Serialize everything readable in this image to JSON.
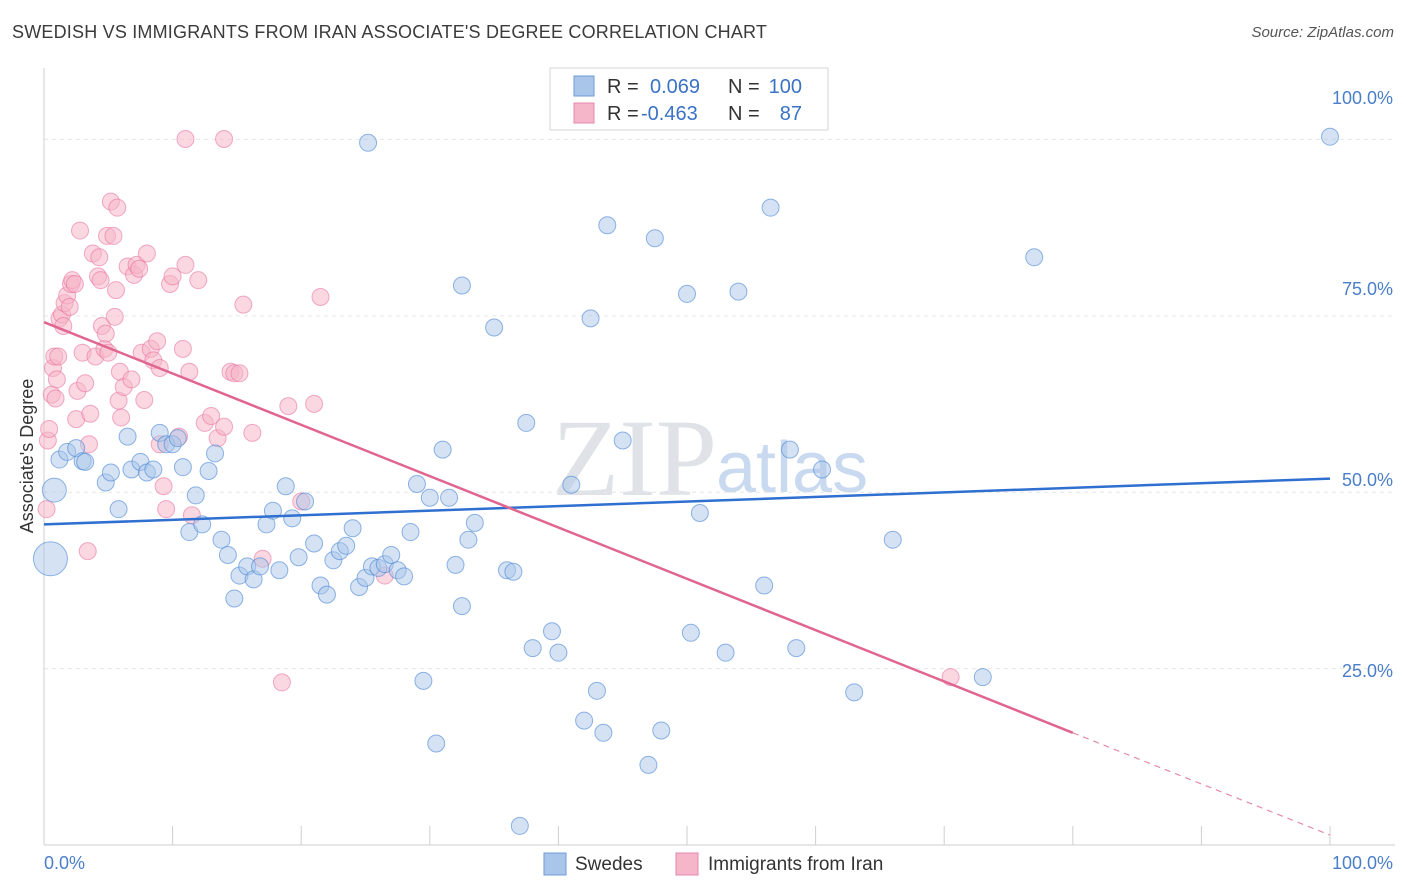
{
  "title": "SWEDISH VS IMMIGRANTS FROM IRAN ASSOCIATE'S DEGREE CORRELATION CHART",
  "source": "Source: ZipAtlas.com",
  "watermark": {
    "zip": "ZIP",
    "atlas": "atlas"
  },
  "legend": {
    "rows": [
      {
        "r_label": "R =",
        "r_value": "0.069",
        "n_label": "N =",
        "n_value": "100",
        "color": "#a9c6ea"
      },
      {
        "r_label": "R =",
        "r_value": "-0.463",
        "n_label": "N =",
        "n_value": "87",
        "color": "#f5b6c9"
      }
    ]
  },
  "bottom_legend": {
    "swedes": "Swedes",
    "iran": "Immigrants from Iran"
  },
  "chart_data": {
    "type": "scatter",
    "ylabel": "Associate's Degree",
    "xlabel": "",
    "x_tick_labels": [
      "0.0%",
      "100.0%"
    ],
    "y_tick_labels": [
      "100.0%",
      "75.0%",
      "50.0%",
      "25.0%"
    ],
    "xlim": [
      0,
      100
    ],
    "ylim": [
      0,
      103
    ],
    "grid": true,
    "colors": {
      "swedes": "#4a86d4",
      "swedes_fill": "#a9c6ea",
      "iran": "#e76b9a",
      "iran_fill": "#f5b6c9"
    },
    "series": [
      {
        "name": "Swedes",
        "trend": {
          "x0": 0,
          "y0": 42.0,
          "x1": 100,
          "y1": 48.0
        },
        "points": [
          [
            0.5,
            37.5
          ],
          [
            0.8,
            46.5
          ],
          [
            1.2,
            50.5
          ],
          [
            1.8,
            51.5
          ],
          [
            2.5,
            52
          ],
          [
            3,
            50.3
          ],
          [
            3.2,
            50.2
          ],
          [
            4.8,
            47.5
          ],
          [
            5.2,
            48.8
          ],
          [
            5.8,
            44
          ],
          [
            6.5,
            53.5
          ],
          [
            6.8,
            49.2
          ],
          [
            7.5,
            50.2
          ],
          [
            8,
            48.8
          ],
          [
            8.5,
            49.2
          ],
          [
            9,
            54
          ],
          [
            9.5,
            52.5
          ],
          [
            10,
            52.5
          ],
          [
            10.4,
            53.3
          ],
          [
            10.8,
            49.5
          ],
          [
            11.3,
            41
          ],
          [
            11.8,
            45.8
          ],
          [
            12.3,
            42
          ],
          [
            12.8,
            49
          ],
          [
            13.3,
            51.3
          ],
          [
            13.8,
            40
          ],
          [
            14.3,
            38
          ],
          [
            14.8,
            32.3
          ],
          [
            15.2,
            35.3
          ],
          [
            15.8,
            36.5
          ],
          [
            16.3,
            34.8
          ],
          [
            16.8,
            36.5
          ],
          [
            17.3,
            42
          ],
          [
            17.8,
            43.8
          ],
          [
            18.3,
            36
          ],
          [
            18.8,
            47
          ],
          [
            19.3,
            42.8
          ],
          [
            19.8,
            37.7
          ],
          [
            20.3,
            45
          ],
          [
            21,
            39.5
          ],
          [
            21.5,
            34
          ],
          [
            22,
            32.8
          ],
          [
            22.5,
            37.3
          ],
          [
            23,
            38.5
          ],
          [
            23.5,
            39.2
          ],
          [
            24,
            41.5
          ],
          [
            24.5,
            33.8
          ],
          [
            25,
            35
          ],
          [
            25.5,
            36.5
          ],
          [
            25.2,
            92
          ],
          [
            26,
            36.3
          ],
          [
            26.5,
            36.8
          ],
          [
            27,
            38
          ],
          [
            27.5,
            36
          ],
          [
            28,
            35.2
          ],
          [
            28.5,
            41
          ],
          [
            29,
            47.3
          ],
          [
            29.5,
            21.5
          ],
          [
            30,
            45.5
          ],
          [
            30.5,
            13.3
          ],
          [
            31,
            51.8
          ],
          [
            31.5,
            45.5
          ],
          [
            32,
            36.7
          ],
          [
            32.5,
            31.3
          ],
          [
            32.5,
            73.3
          ],
          [
            33,
            40
          ],
          [
            33.5,
            42.2
          ],
          [
            35,
            67.8
          ],
          [
            36,
            36
          ],
          [
            36.5,
            35.8
          ],
          [
            37,
            2.5
          ],
          [
            37.5,
            55.3
          ],
          [
            38,
            25.8
          ],
          [
            39.5,
            28
          ],
          [
            40,
            25.2
          ],
          [
            41,
            47.2
          ],
          [
            42,
            16.3
          ],
          [
            42.5,
            69
          ],
          [
            43,
            20.2
          ],
          [
            43.5,
            14.7
          ],
          [
            43.8,
            81.2
          ],
          [
            45,
            53
          ],
          [
            47,
            10.5
          ],
          [
            47.5,
            79.5
          ],
          [
            48,
            15
          ],
          [
            50,
            72.2
          ],
          [
            50.3,
            27.8
          ],
          [
            51,
            43.5
          ],
          [
            53,
            25.2
          ],
          [
            54,
            72.5
          ],
          [
            56,
            34
          ],
          [
            56.5,
            83.5
          ],
          [
            58,
            51.8
          ],
          [
            58.5,
            25.8
          ],
          [
            60.5,
            49.2
          ],
          [
            63,
            20
          ],
          [
            66,
            40
          ],
          [
            77,
            77
          ],
          [
            100,
            92.8
          ],
          [
            73,
            22
          ]
        ]
      },
      {
        "name": "Immigrants from Iran",
        "trend": {
          "x0": 0,
          "y0": 68.5,
          "x1": 80,
          "y1": 14.7,
          "x_dash_end": 100,
          "y_dash_end": 1.3
        },
        "points": [
          [
            0.2,
            44
          ],
          [
            0.3,
            53
          ],
          [
            0.4,
            54.5
          ],
          [
            0.6,
            59
          ],
          [
            0.7,
            62.5
          ],
          [
            0.8,
            64
          ],
          [
            0.9,
            58.5
          ],
          [
            1.0,
            61
          ],
          [
            1.1,
            64
          ],
          [
            1.2,
            69
          ],
          [
            1.4,
            69.5
          ],
          [
            1.5,
            68
          ],
          [
            1.6,
            71
          ],
          [
            1.8,
            72
          ],
          [
            2.0,
            70.5
          ],
          [
            2.1,
            73.5
          ],
          [
            2.2,
            74
          ],
          [
            2.4,
            73.5
          ],
          [
            2.5,
            55.8
          ],
          [
            2.6,
            59.5
          ],
          [
            2.8,
            80.5
          ],
          [
            3.0,
            64.5
          ],
          [
            3.2,
            60.5
          ],
          [
            3.4,
            38.5
          ],
          [
            3.5,
            52.5
          ],
          [
            3.6,
            56.5
          ],
          [
            3.8,
            77.5
          ],
          [
            4.0,
            64
          ],
          [
            4.2,
            74.5
          ],
          [
            4.3,
            77
          ],
          [
            4.4,
            74
          ],
          [
            4.5,
            68
          ],
          [
            4.7,
            65
          ],
          [
            4.8,
            67
          ],
          [
            4.9,
            79.8
          ],
          [
            5.0,
            64.5
          ],
          [
            5.2,
            84.3
          ],
          [
            5.4,
            79.8
          ],
          [
            5.5,
            69.2
          ],
          [
            5.6,
            72.7
          ],
          [
            5.7,
            83.5
          ],
          [
            5.8,
            58.2
          ],
          [
            5.9,
            62
          ],
          [
            6.0,
            56
          ],
          [
            6.2,
            60
          ],
          [
            6.5,
            75.8
          ],
          [
            6.8,
            61
          ],
          [
            7.0,
            74.7
          ],
          [
            7.2,
            76
          ],
          [
            7.4,
            75.5
          ],
          [
            7.6,
            64.5
          ],
          [
            7.8,
            58.3
          ],
          [
            8.0,
            77.5
          ],
          [
            8.3,
            65
          ],
          [
            8.5,
            63.5
          ],
          [
            8.8,
            66
          ],
          [
            9.0,
            52.5
          ],
          [
            9.3,
            47
          ],
          [
            9.5,
            44
          ],
          [
            9.8,
            73.5
          ],
          [
            10.0,
            74.5
          ],
          [
            10.5,
            53.5
          ],
          [
            10.8,
            65
          ],
          [
            11.0,
            76
          ],
          [
            11.3,
            62
          ],
          [
            11.5,
            43.2
          ],
          [
            12.0,
            74
          ],
          [
            12.5,
            55.3
          ],
          [
            13.0,
            56.2
          ],
          [
            13.5,
            53.3
          ],
          [
            14.0,
            54.8
          ],
          [
            14.5,
            62
          ],
          [
            14.8,
            61.8
          ],
          [
            15.2,
            61.8
          ],
          [
            15.5,
            70.8
          ],
          [
            16.2,
            54
          ],
          [
            17.0,
            37.5
          ],
          [
            18.5,
            21.3
          ],
          [
            19.0,
            57.5
          ],
          [
            20.0,
            45
          ],
          [
            21.0,
            57.8
          ],
          [
            21.5,
            71.8
          ],
          [
            26.5,
            35.3
          ],
          [
            14.0,
            92.5
          ],
          [
            11.0,
            92.5
          ],
          [
            9.0,
            62.5
          ],
          [
            70.5,
            22
          ]
        ]
      }
    ]
  }
}
